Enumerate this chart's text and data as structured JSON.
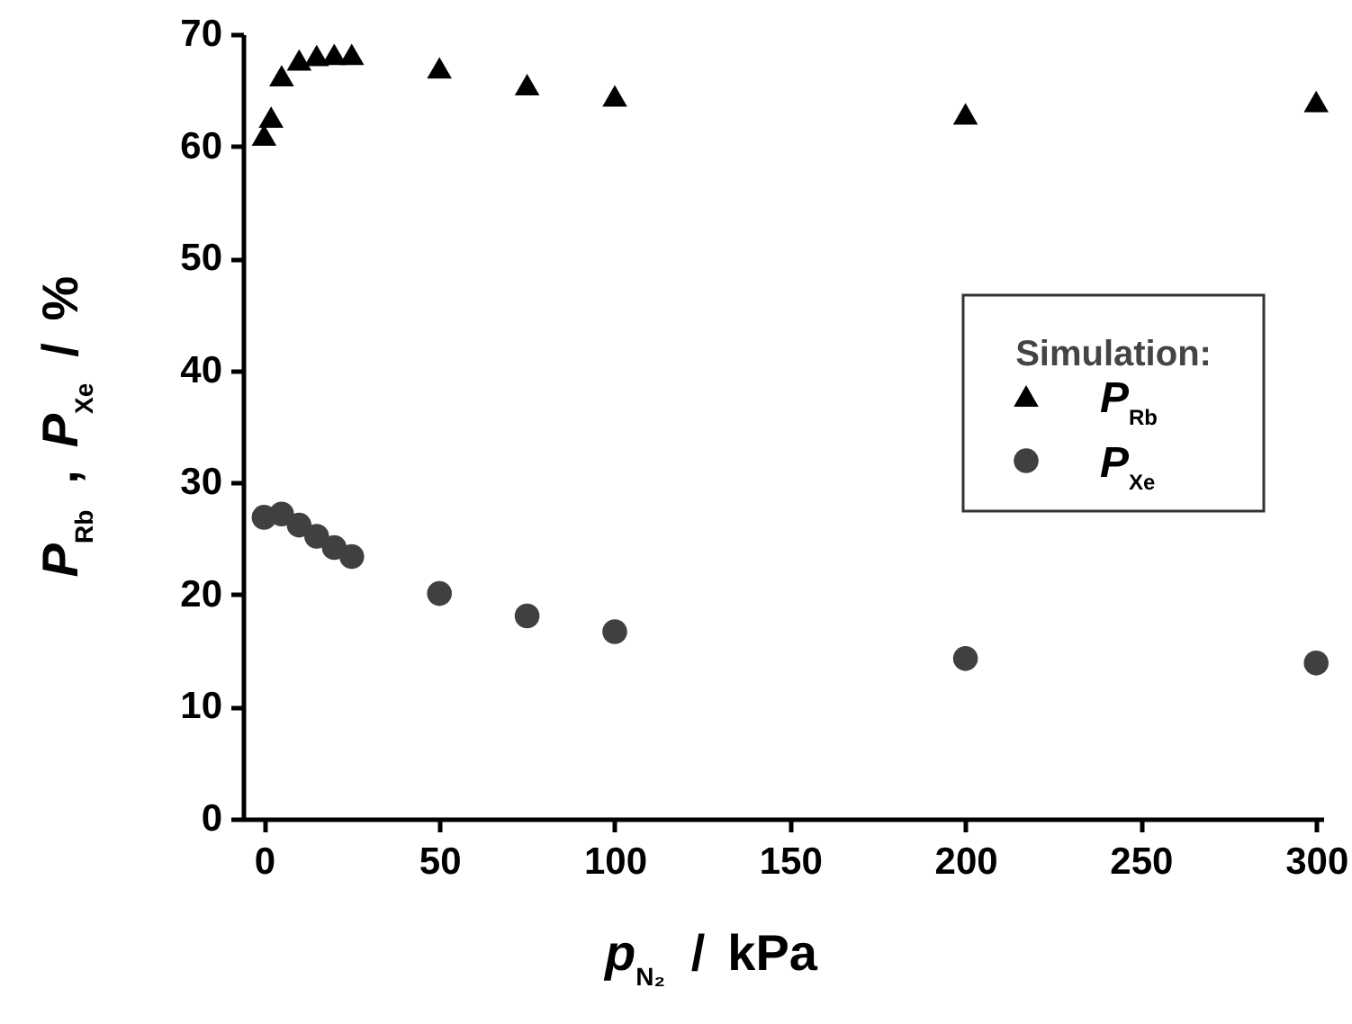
{
  "chart_data": {
    "type": "scatter",
    "xlabel": "p$_{N₂}$ / kPa",
    "ylabel": "P$_{Rb}$ , P$_{Xe}$ / %",
    "legend_title": "Simulation:",
    "legend": "right",
    "xlim": [
      -6,
      302
    ],
    "xticks": [
      0,
      50,
      100,
      150,
      200,
      250,
      300
    ],
    "ylim": [
      0,
      70
    ],
    "yticks": [
      0,
      10,
      20,
      30,
      40,
      50,
      60,
      70
    ],
    "grid": false,
    "series": [
      {
        "name": "P$_{Rb}$",
        "color": "#000000",
        "marker": "triangle",
        "x": [
          0,
          2,
          5,
          10,
          15,
          20,
          25,
          50,
          75,
          100,
          200,
          300
        ],
        "values": [
          61.0,
          62.6,
          66.3,
          67.7,
          68.1,
          68.2,
          68.2,
          67.0,
          65.5,
          64.5,
          62.9,
          64.0
        ]
      },
      {
        "name": "P$_{Xe}$",
        "color": "#404040",
        "marker": "circle",
        "x": [
          0,
          5,
          10,
          15,
          20,
          25,
          50,
          75,
          100,
          200,
          300
        ],
        "values": [
          26.9,
          27.2,
          26.2,
          25.2,
          24.2,
          23.4,
          20.1,
          18.1,
          16.7,
          14.3,
          13.9
        ]
      }
    ]
  }
}
